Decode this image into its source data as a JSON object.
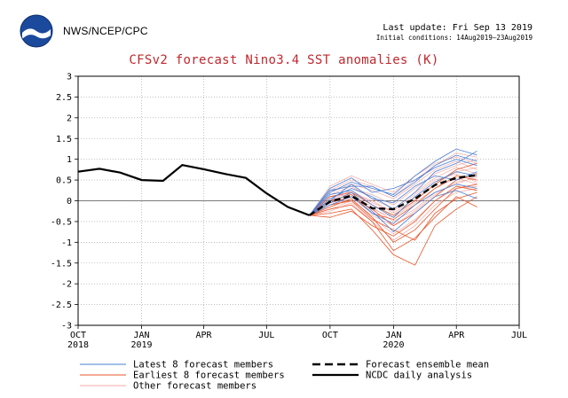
{
  "header": {
    "agency": "NWS/NCEP/CPC",
    "last_update": "Last update: Fri Sep 13 2019",
    "initial_conditions": "Initial conditions: 14Aug2019–23Aug2019",
    "logo_text": "NOAA"
  },
  "colors": {
    "title": "#c0282e",
    "latest_members": "#4a7fd4",
    "earliest_members": "#e8562a",
    "other_members": "#f2a9a4",
    "ensemble_mean": "#000000",
    "daily_analysis": "#000000"
  },
  "chart_data": {
    "type": "line",
    "title": "CFSv2 forecast Nino3.4 SST anomalies (K)",
    "xlabel": "",
    "ylabel": "",
    "ylim": [
      -3,
      3
    ],
    "yticks": [
      -3,
      -2.5,
      -2,
      -1.5,
      -1,
      -0.5,
      0,
      0.5,
      1,
      1.5,
      2,
      2.5,
      3
    ],
    "xlim": [
      "2018-10-01",
      "2020-07-01"
    ],
    "xticks": [
      {
        "date": "2018-10-01",
        "label": "OCT",
        "year": "2018"
      },
      {
        "date": "2019-01-01",
        "label": "JAN",
        "year": "2019"
      },
      {
        "date": "2019-04-01",
        "label": "APR",
        "year": ""
      },
      {
        "date": "2019-07-01",
        "label": "JUL",
        "year": ""
      },
      {
        "date": "2019-10-01",
        "label": "OCT",
        "year": ""
      },
      {
        "date": "2020-01-01",
        "label": "JAN",
        "year": "2020"
      },
      {
        "date": "2020-04-01",
        "label": "APR",
        "year": ""
      },
      {
        "date": "2020-07-01",
        "label": "JUL",
        "year": ""
      }
    ],
    "grid": true,
    "zero_line": true,
    "legend": [
      {
        "key": "latest",
        "label": "Latest 8 forecast members",
        "style": "thin",
        "color_key": "latest_members"
      },
      {
        "key": "earliest",
        "label": "Earliest 8 forecast members",
        "style": "thin",
        "color_key": "earliest_members"
      },
      {
        "key": "other",
        "label": "Other forecast members",
        "style": "thin",
        "color_key": "other_members"
      },
      {
        "key": "mean",
        "label": "Forecast ensemble mean",
        "style": "thick-dashed",
        "color_key": "ensemble_mean"
      },
      {
        "key": "analysis",
        "label": "NCDC daily analysis",
        "style": "thick",
        "color_key": "daily_analysis"
      }
    ],
    "series": [
      {
        "name": "NCDC daily analysis",
        "key": "analysis",
        "points": [
          [
            "2018-10-01",
            0.7
          ],
          [
            "2018-11-01",
            0.77
          ],
          [
            "2018-12-01",
            0.68
          ],
          [
            "2019-01-01",
            0.5
          ],
          [
            "2019-02-01",
            0.48
          ],
          [
            "2019-03-01",
            0.86
          ],
          [
            "2019-04-01",
            0.76
          ],
          [
            "2019-05-01",
            0.65
          ],
          [
            "2019-06-01",
            0.55
          ],
          [
            "2019-07-01",
            0.18
          ],
          [
            "2019-08-01",
            -0.15
          ],
          [
            "2019-09-01",
            -0.35
          ]
        ]
      },
      {
        "name": "Forecast ensemble mean",
        "key": "mean",
        "points": [
          [
            "2019-09-01",
            -0.35
          ],
          [
            "2019-10-01",
            -0.02
          ],
          [
            "2019-11-01",
            0.12
          ],
          [
            "2019-12-01",
            -0.18
          ],
          [
            "2020-01-01",
            -0.2
          ],
          [
            "2020-02-01",
            0.05
          ],
          [
            "2020-03-01",
            0.38
          ],
          [
            "2020-04-01",
            0.55
          ],
          [
            "2020-05-01",
            0.62
          ]
        ]
      }
    ],
    "forecast_members": {
      "months": [
        "2019-09-01",
        "2019-10-01",
        "2019-11-01",
        "2019-12-01",
        "2020-01-01",
        "2020-02-01",
        "2020-03-01",
        "2020-04-01",
        "2020-05-01"
      ],
      "latest": [
        [
          -0.35,
          0.2,
          0.45,
          0.3,
          0.15,
          0.6,
          0.95,
          1.25,
          1.1
        ],
        [
          -0.35,
          0.05,
          0.3,
          0.1,
          -0.2,
          0.2,
          0.7,
          0.9,
          1.2
        ],
        [
          -0.35,
          0.3,
          0.55,
          0.2,
          0.3,
          0.5,
          0.8,
          1.0,
          0.85
        ],
        [
          -0.35,
          -0.1,
          0.1,
          -0.3,
          -0.55,
          -0.1,
          0.2,
          0.4,
          0.3
        ],
        [
          -0.35,
          0.15,
          0.25,
          -0.1,
          -0.4,
          0.1,
          0.45,
          0.7,
          0.6
        ],
        [
          -0.35,
          0.0,
          0.4,
          0.05,
          -0.05,
          0.35,
          0.6,
          0.5,
          0.7
        ],
        [
          -0.35,
          0.25,
          0.35,
          0.35,
          0.1,
          0.45,
          0.85,
          1.1,
          0.95
        ],
        [
          -0.35,
          -0.05,
          0.2,
          -0.25,
          -0.75,
          -0.3,
          0.1,
          0.25,
          0.05
        ]
      ],
      "earliest": [
        [
          -0.35,
          -0.3,
          -0.2,
          -0.7,
          -1.3,
          -1.55,
          -0.6,
          -0.2,
          0.1
        ],
        [
          -0.35,
          -0.15,
          0.05,
          -0.4,
          -1.0,
          -0.7,
          -0.2,
          0.3,
          0.4
        ],
        [
          -0.35,
          -0.05,
          0.1,
          -0.2,
          -0.6,
          -0.3,
          0.1,
          0.5,
          0.65
        ],
        [
          -0.35,
          -0.2,
          -0.1,
          -0.5,
          -1.2,
          -0.9,
          -0.4,
          0.1,
          -0.15
        ],
        [
          -0.35,
          0.1,
          0.2,
          -0.1,
          -0.35,
          0.0,
          0.4,
          0.75,
          0.9
        ],
        [
          -0.35,
          -0.4,
          -0.25,
          -0.6,
          -0.85,
          -0.5,
          0.0,
          0.35,
          0.25
        ],
        [
          -0.35,
          0.0,
          0.15,
          -0.3,
          -0.45,
          -0.1,
          0.3,
          0.6,
          0.5
        ],
        [
          -0.35,
          -0.1,
          0.0,
          -0.45,
          -0.7,
          -0.95,
          -0.3,
          0.05,
          0.2
        ]
      ],
      "other": [
        [
          -0.35,
          0.1,
          0.2,
          0.0,
          -0.3,
          0.05,
          0.4,
          0.7,
          0.8
        ],
        [
          -0.35,
          0.35,
          0.6,
          0.4,
          0.2,
          0.6,
          0.9,
          1.05,
          0.9
        ],
        [
          -0.35,
          -0.2,
          0.0,
          -0.35,
          -0.6,
          -0.25,
          0.15,
          0.45,
          0.55
        ],
        [
          -0.35,
          0.05,
          0.3,
          0.15,
          -0.1,
          0.3,
          0.65,
          0.85,
          1.0
        ],
        [
          -0.35,
          -0.05,
          0.1,
          -0.2,
          -0.4,
          -0.05,
          0.3,
          0.55,
          0.4
        ],
        [
          -0.35,
          0.2,
          0.4,
          0.25,
          0.05,
          0.4,
          0.75,
          0.95,
          0.75
        ],
        [
          -0.35,
          -0.1,
          0.05,
          -0.4,
          -0.8,
          -0.45,
          0.0,
          0.3,
          0.35
        ],
        [
          -0.35,
          0.15,
          0.35,
          0.05,
          -0.2,
          0.2,
          0.55,
          0.8,
          0.65
        ],
        [
          -0.35,
          0.0,
          0.25,
          -0.05,
          -0.25,
          0.15,
          0.5,
          0.65,
          0.45
        ],
        [
          -0.35,
          0.25,
          0.5,
          0.35,
          0.1,
          0.5,
          0.85,
          1.15,
          1.05
        ],
        [
          -0.35,
          -0.25,
          -0.05,
          -0.5,
          -0.95,
          -0.6,
          -0.1,
          0.2,
          0.3
        ],
        [
          -0.35,
          0.1,
          0.15,
          -0.15,
          -0.5,
          -0.2,
          0.2,
          0.4,
          0.6
        ]
      ]
    }
  }
}
